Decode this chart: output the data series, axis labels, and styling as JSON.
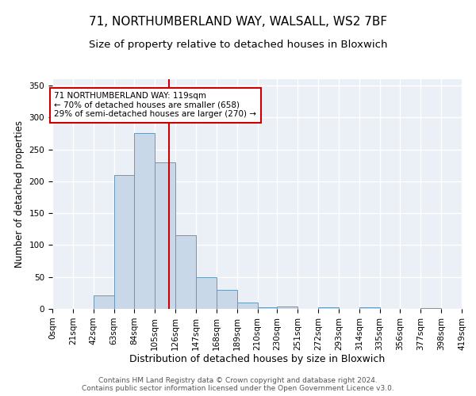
{
  "title1": "71, NORTHUMBERLAND WAY, WALSALL, WS2 7BF",
  "title2": "Size of property relative to detached houses in Bloxwich",
  "xlabel": "Distribution of detached houses by size in Bloxwich",
  "ylabel": "Number of detached properties",
  "bin_edges": [
    0,
    21,
    42,
    63,
    84,
    105,
    126,
    147,
    168,
    189,
    210,
    230,
    251,
    272,
    293,
    314,
    335,
    356,
    377,
    398,
    419
  ],
  "bar_heights": [
    0,
    0,
    21,
    210,
    275,
    230,
    115,
    50,
    30,
    10,
    2,
    4,
    0,
    3,
    0,
    2,
    0,
    0,
    1,
    0
  ],
  "bar_color": "#c8d8e8",
  "bar_edge_color": "#6699bb",
  "vline_x": 119,
  "vline_color": "#cc0000",
  "annotation_text": "71 NORTHUMBERLAND WAY: 119sqm\n← 70% of detached houses are smaller (658)\n29% of semi-detached houses are larger (270) →",
  "annotation_box_color": "#ffffff",
  "annotation_box_edge": "#cc0000",
  "ylim": [
    0,
    360
  ],
  "tick_labels": [
    "0sqm",
    "21sqm",
    "42sqm",
    "63sqm",
    "84sqm",
    "105sqm",
    "126sqm",
    "147sqm",
    "168sqm",
    "189sqm",
    "210sqm",
    "230sqm",
    "251sqm",
    "272sqm",
    "293sqm",
    "314sqm",
    "335sqm",
    "356sqm",
    "377sqm",
    "398sqm",
    "419sqm"
  ],
  "footer1": "Contains HM Land Registry data © Crown copyright and database right 2024.",
  "footer2": "Contains public sector information licensed under the Open Government Licence v3.0.",
  "title1_fontsize": 11,
  "title2_fontsize": 9.5,
  "xlabel_fontsize": 9,
  "ylabel_fontsize": 8.5,
  "tick_fontsize": 7.5,
  "footer_fontsize": 6.5,
  "bg_color": "#eaf0f6",
  "grid_color": "#ffffff"
}
